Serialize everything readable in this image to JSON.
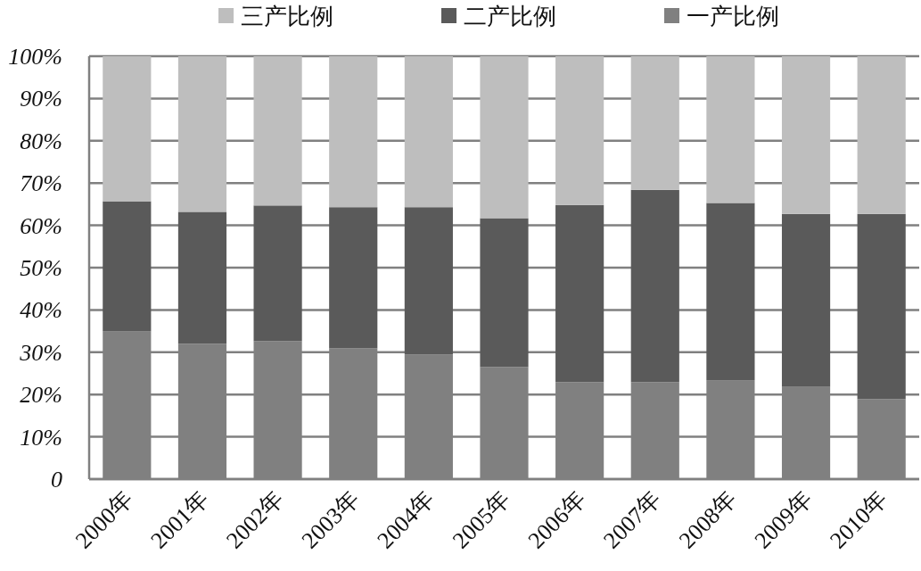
{
  "chart_data": {
    "type": "bar",
    "stacked": true,
    "legend": "top",
    "grid": "y",
    "categories": [
      "2000年",
      "2001年",
      "2002年",
      "2003年",
      "2004年",
      "2005年",
      "2006年",
      "2007年",
      "2008年",
      "2009年",
      "2010年"
    ],
    "series": [
      {
        "name": "一产比例",
        "color": "#808080",
        "values": [
          35.0,
          32.0,
          32.6,
          30.9,
          29.5,
          26.5,
          22.9,
          22.9,
          23.4,
          21.8,
          18.9
        ]
      },
      {
        "name": "二产比例",
        "color": "#5a5a5a",
        "values": [
          30.7,
          31.2,
          32.1,
          33.4,
          34.8,
          35.2,
          41.9,
          45.5,
          41.9,
          40.9,
          43.8
        ]
      },
      {
        "name": "三产比例",
        "color": "#bebebe",
        "values": [
          34.3,
          36.8,
          35.3,
          35.7,
          35.7,
          38.3,
          35.2,
          31.6,
          34.7,
          37.3,
          37.3
        ]
      }
    ],
    "ylim": [
      0,
      100
    ],
    "yticks": [
      {
        "value": 0,
        "label": "0"
      },
      {
        "value": 10,
        "label": "10%"
      },
      {
        "value": 20,
        "label": "20%"
      },
      {
        "value": 30,
        "label": "30%"
      },
      {
        "value": 40,
        "label": "40%"
      },
      {
        "value": 50,
        "label": "50%"
      },
      {
        "value": 60,
        "label": "60%"
      },
      {
        "value": 70,
        "label": "70%"
      },
      {
        "value": 80,
        "label": "80%"
      },
      {
        "value": 90,
        "label": "90%"
      },
      {
        "value": 100,
        "label": "100%"
      }
    ]
  }
}
